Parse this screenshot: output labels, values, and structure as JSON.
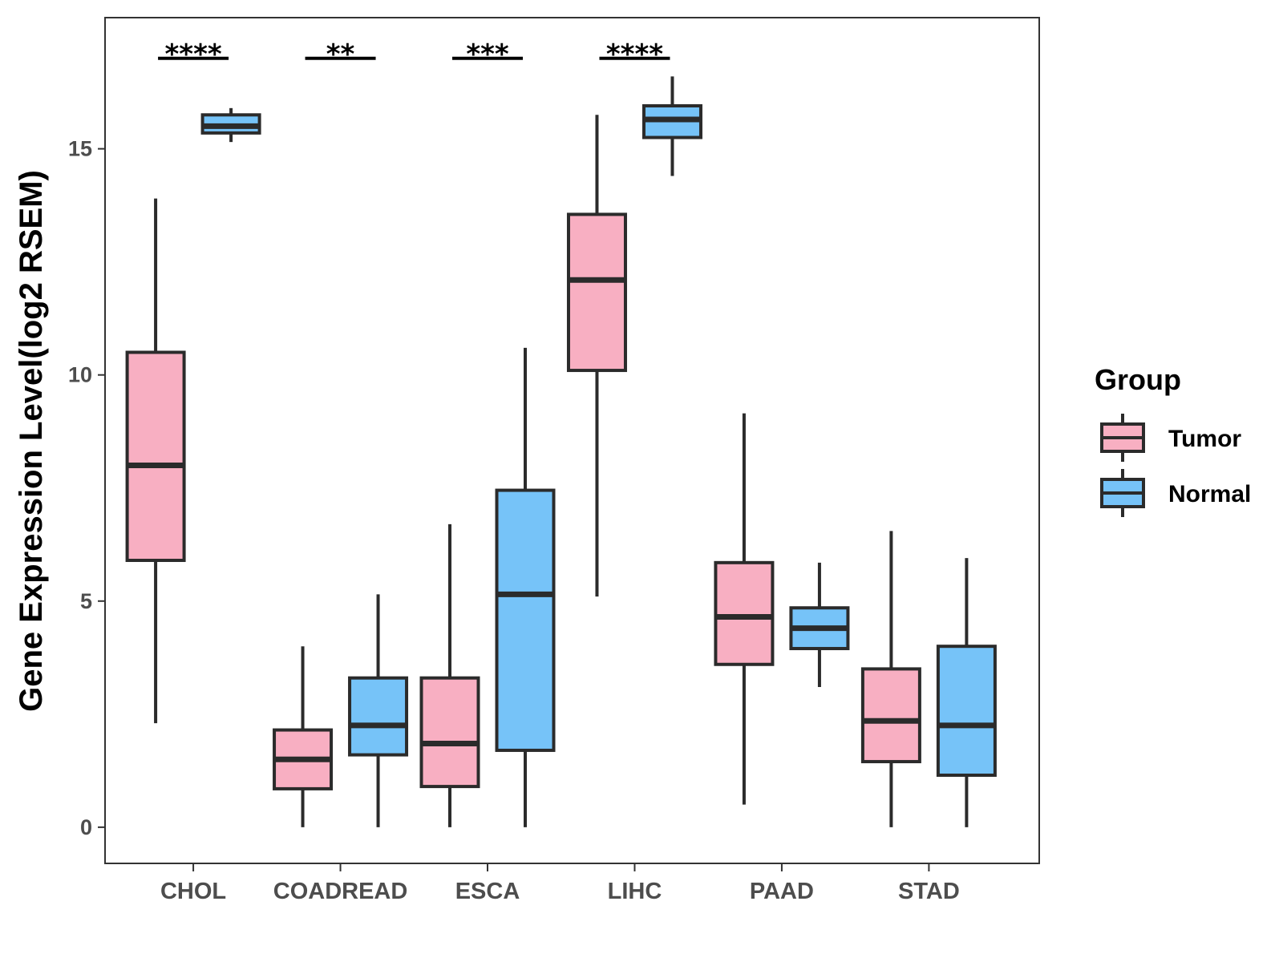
{
  "chart_data": {
    "type": "box",
    "title": "",
    "xlabel": "",
    "ylabel": "Gene Expression Level(log2 RSEM)",
    "ylim": [
      -0.8,
      17.9
    ],
    "yticks": [
      0,
      5,
      10,
      15
    ],
    "categories": [
      "CHOL",
      "COADREAD",
      "ESCA",
      "LIHC",
      "PAAD",
      "STAD"
    ],
    "legend": {
      "title": "Group",
      "position": "right",
      "entries": [
        {
          "name": "Tumor",
          "color": "#F8AFC2"
        },
        {
          "name": "Normal",
          "color": "#76C3F8"
        }
      ]
    },
    "series": [
      {
        "name": "Tumor",
        "color": "#F8AFC2",
        "boxes": [
          {
            "category": "CHOL",
            "min": 2.3,
            "q1": 5.9,
            "median": 8.0,
            "q3": 10.5,
            "max": 13.9
          },
          {
            "category": "COADREAD",
            "min": 0.0,
            "q1": 0.85,
            "median": 1.5,
            "q3": 2.15,
            "max": 4.0
          },
          {
            "category": "ESCA",
            "min": 0.0,
            "q1": 0.9,
            "median": 1.85,
            "q3": 3.3,
            "max": 6.7
          },
          {
            "category": "LIHC",
            "min": 5.1,
            "q1": 10.1,
            "median": 12.1,
            "q3": 13.55,
            "max": 15.75
          },
          {
            "category": "PAAD",
            "min": 0.5,
            "q1": 3.6,
            "median": 4.65,
            "q3": 5.85,
            "max": 9.15
          },
          {
            "category": "STAD",
            "min": 0.0,
            "q1": 1.45,
            "median": 2.35,
            "q3": 3.5,
            "max": 6.55
          }
        ]
      },
      {
        "name": "Normal",
        "color": "#76C3F8",
        "boxes": [
          {
            "category": "CHOL",
            "min": 15.15,
            "q1": 15.35,
            "median": 15.5,
            "q3": 15.75,
            "max": 15.9
          },
          {
            "category": "COADREAD",
            "min": 0.0,
            "q1": 1.6,
            "median": 2.25,
            "q3": 3.3,
            "max": 5.15
          },
          {
            "category": "ESCA",
            "min": 0.0,
            "q1": 1.7,
            "median": 5.15,
            "q3": 7.45,
            "max": 10.6
          },
          {
            "category": "LIHC",
            "min": 14.4,
            "q1": 15.25,
            "median": 15.65,
            "q3": 15.95,
            "max": 16.6
          },
          {
            "category": "PAAD",
            "min": 3.1,
            "q1": 3.95,
            "median": 4.4,
            "q3": 4.85,
            "max": 5.85
          },
          {
            "category": "STAD",
            "min": 0.0,
            "q1": 1.15,
            "median": 2.25,
            "q3": 4.0,
            "max": 5.95
          }
        ]
      }
    ],
    "significance": [
      {
        "category": "CHOL",
        "label": "****",
        "y": 17.0
      },
      {
        "category": "COADREAD",
        "label": "**",
        "y": 17.0
      },
      {
        "category": "ESCA",
        "label": "***",
        "y": 17.0
      },
      {
        "category": "LIHC",
        "label": "****",
        "y": 17.0
      }
    ]
  }
}
